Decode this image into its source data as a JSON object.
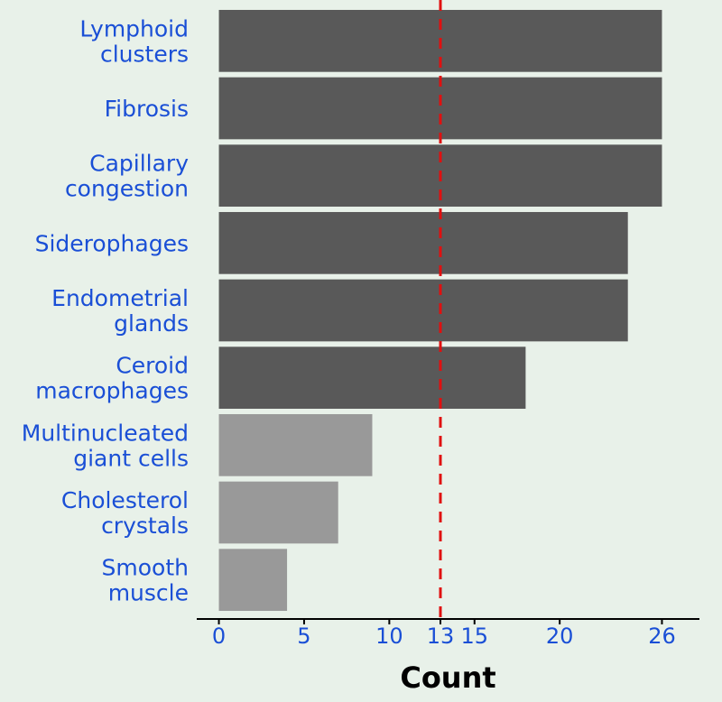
{
  "chart_data": {
    "type": "bar",
    "orientation": "horizontal",
    "title": "",
    "xlabel": "Count",
    "ylabel": "",
    "categories": [
      [
        "Lymphoid",
        "clusters"
      ],
      [
        "Fibrosis"
      ],
      [
        "Capillary",
        "congestion"
      ],
      [
        "Siderophages"
      ],
      [
        "Endometrial",
        "glands"
      ],
      [
        "Ceroid",
        "macrophages"
      ],
      [
        "Multinucleated",
        "giant cells"
      ],
      [
        "Cholesterol",
        "crystals"
      ],
      [
        "Smooth",
        "muscle"
      ]
    ],
    "values": [
      26,
      26,
      26,
      24,
      24,
      18,
      9,
      7,
      4
    ],
    "x_ticks": [
      0,
      5,
      10,
      13,
      15,
      20,
      26
    ],
    "xlim": [
      -1.3,
      28.2
    ],
    "threshold": 13,
    "grid": false,
    "legend": "none",
    "colors": {
      "above_threshold": "#595959",
      "below_threshold": "#999999",
      "threshold_line": "#e01010",
      "label_text": "#1a4fd6",
      "axis": "#000000",
      "background": "#e8f1e9"
    }
  }
}
